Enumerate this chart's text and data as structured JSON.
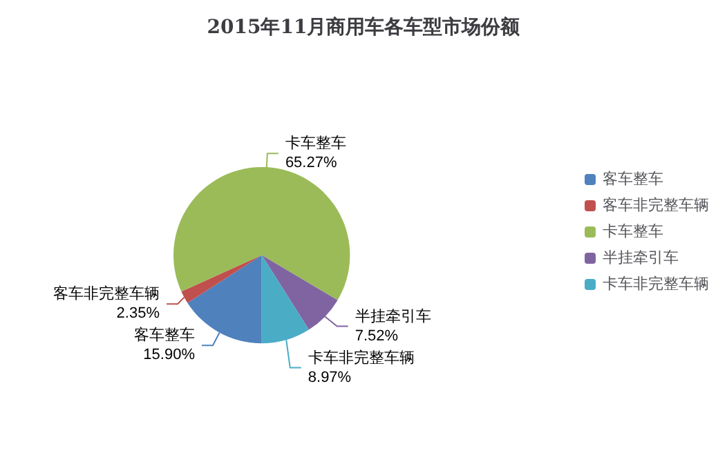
{
  "chart_data": {
    "type": "pie",
    "title": "2015年11月商用车各车型市场份额",
    "categories": [
      "客车整车",
      "客车非完整车辆",
      "卡车整车",
      "半挂牵引车",
      "卡车非完整车辆"
    ],
    "values": [
      15.9,
      2.35,
      65.27,
      7.52,
      8.97
    ],
    "value_labels": [
      "15.90%",
      "2.35%",
      "65.27%",
      "7.52%",
      "8.97%"
    ],
    "colors": [
      "#4f81bd",
      "#c0504d",
      "#9bbb59",
      "#8064a2",
      "#4bacc6"
    ],
    "legend": "right"
  }
}
